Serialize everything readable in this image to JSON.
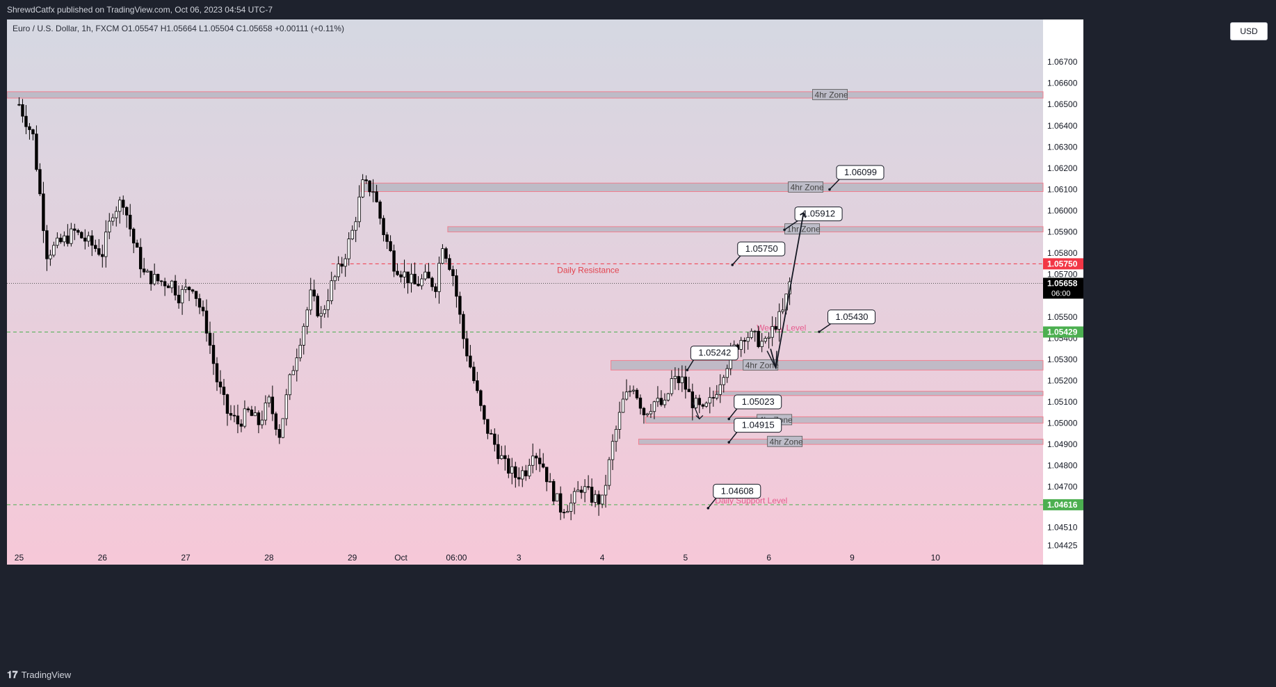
{
  "header": {
    "publisher_line": "ShrewdCatfx published on TradingView.com, Oct 06, 2023 04:54 UTC-7"
  },
  "footer": {
    "brand": "TradingView"
  },
  "currency": "USD",
  "colors": {
    "bg_top": "#d5d8e2",
    "bg_bottom": "#f6c8d8",
    "zone_fill": "#b8b6c2",
    "zone_border": "#f07f8f",
    "resistance": "#f23645",
    "support": "#4caf50",
    "candle": "#000000"
  },
  "chart_data": {
    "type": "candlestick",
    "symbol_line": "Euro / U.S. Dollar, 1h, FXCM  O1.05547  H1.05664  L1.05504  C1.05658  +0.00111 (+0.11%)",
    "ylim": [
      1.0438,
      1.069
    ],
    "y_ticks": [
      "1.06700",
      "1.06600",
      "1.06500",
      "1.06400",
      "1.06300",
      "1.06200",
      "1.06100",
      "1.06000",
      "1.05900",
      "1.05800",
      "1.05700",
      "1.05600",
      "1.05500",
      "1.05400",
      "1.05300",
      "1.05200",
      "1.05100",
      "1.05000",
      "1.04900",
      "1.04800",
      "1.04700",
      "1.04616",
      "1.04510",
      "1.04425"
    ],
    "x_ticks": [
      {
        "label": "25",
        "x": 0
      },
      {
        "label": "26",
        "x": 24
      },
      {
        "label": "27",
        "x": 48
      },
      {
        "label": "28",
        "x": 72
      },
      {
        "label": "29",
        "x": 96
      },
      {
        "label": "Oct",
        "x": 110
      },
      {
        "label": "06:00",
        "x": 126
      },
      {
        "label": "3",
        "x": 144
      },
      {
        "label": "4",
        "x": 168
      },
      {
        "label": "5",
        "x": 192
      },
      {
        "label": "6",
        "x": 216
      },
      {
        "label": "9",
        "x": 240
      },
      {
        "label": "10",
        "x": 264
      }
    ],
    "x_range": [
      -3.5,
      295
    ],
    "price_path": [
      [
        0,
        1.065
      ],
      [
        4,
        1.0635
      ],
      [
        8,
        1.058
      ],
      [
        12,
        1.0585
      ],
      [
        16,
        1.059
      ],
      [
        20,
        1.0585
      ],
      [
        24,
        1.058
      ],
      [
        27,
        1.06
      ],
      [
        30,
        1.0605
      ],
      [
        33,
        1.0585
      ],
      [
        36,
        1.057
      ],
      [
        40,
        1.0567
      ],
      [
        44,
        1.0566
      ],
      [
        46,
        1.056
      ],
      [
        50,
        1.0565
      ],
      [
        54,
        1.0545
      ],
      [
        57,
        1.052
      ],
      [
        60,
        1.0505
      ],
      [
        63,
        1.05
      ],
      [
        66,
        1.0505
      ],
      [
        69,
        1.05
      ],
      [
        72,
        1.051
      ],
      [
        75,
        1.0495
      ],
      [
        78,
        1.052
      ],
      [
        81,
        1.054
      ],
      [
        84,
        1.056
      ],
      [
        87,
        1.055
      ],
      [
        90,
        1.0565
      ],
      [
        93,
        1.0575
      ],
      [
        96,
        1.059
      ],
      [
        99,
        1.0612
      ],
      [
        102,
        1.061
      ],
      [
        105,
        1.059
      ],
      [
        108,
        1.0575
      ],
      [
        111,
        1.057
      ],
      [
        114,
        1.0565
      ],
      [
        117,
        1.0568
      ],
      [
        120,
        1.0565
      ],
      [
        122,
        1.0585
      ],
      [
        125,
        1.057
      ],
      [
        128,
        1.054
      ],
      [
        131,
        1.052
      ],
      [
        134,
        1.05
      ],
      [
        137,
        1.049
      ],
      [
        140,
        1.048
      ],
      [
        143,
        1.0475
      ],
      [
        146,
        1.0478
      ],
      [
        148,
        1.0488
      ],
      [
        151,
        1.048
      ],
      [
        153,
        1.047
      ],
      [
        156,
        1.046
      ],
      [
        159,
        1.0462
      ],
      [
        162,
        1.047
      ],
      [
        165,
        1.0465
      ],
      [
        168,
        1.0463
      ],
      [
        171,
        1.049
      ],
      [
        174,
        1.051
      ],
      [
        177,
        1.0518
      ],
      [
        180,
        1.0505
      ],
      [
        183,
        1.051
      ],
      [
        186,
        1.0508
      ],
      [
        188,
        1.052
      ],
      [
        191,
        1.052
      ],
      [
        194,
        1.051
      ],
      [
        197,
        1.0505
      ],
      [
        200,
        1.0512
      ],
      [
        203,
        1.0525
      ],
      [
        206,
        1.0535
      ],
      [
        209,
        1.0542
      ],
      [
        212,
        1.054
      ],
      [
        215,
        1.0537
      ],
      [
        218,
        1.0547
      ],
      [
        220,
        1.0552
      ],
      [
        222,
        1.0566
      ]
    ],
    "horizontal_lines": [
      {
        "name": "daily-resistance",
        "price": 1.0575,
        "style": "dashed",
        "color": "#f23645",
        "x_from": 90,
        "label": "Daily Resistance",
        "axis_label": "1.05750"
      },
      {
        "name": "current-price",
        "price": 1.05658,
        "style": "dotted",
        "color": "#555555",
        "x_from": -3.5,
        "axis_label": "1.05658",
        "axis_sub": "06:00"
      },
      {
        "name": "weekly-level",
        "price": 1.05429,
        "style": "dashed",
        "color": "#4caf50",
        "x_from": -3.5,
        "label": "Weekly Level",
        "axis_label": "1.05429"
      },
      {
        "name": "daily-support",
        "price": 1.04616,
        "style": "dashed",
        "color": "#4caf50",
        "x_from": -3.5,
        "label": "Daily Support Level",
        "axis_label": "1.04616"
      }
    ],
    "zones": [
      {
        "name": "zone-top",
        "label": "4hr Zone",
        "from_x": -3.5,
        "price_high": 1.0656,
        "price_low": 1.0653,
        "label_x": 229
      },
      {
        "name": "zone-1061",
        "label": "4hr Zone",
        "from_x": 98.5,
        "price_high": 1.0613,
        "price_low": 1.0609,
        "label_x": 222
      },
      {
        "name": "zone-1059",
        "label": "1hr Zone",
        "from_x": 123.5,
        "price_high": 1.05925,
        "price_low": 1.059,
        "label_x": 221
      },
      {
        "name": "zone-1053",
        "label": "4hr Zone",
        "from_x": 170.5,
        "price_high": 1.05295,
        "price_low": 1.0525,
        "label_x": 209
      },
      {
        "name": "zone-1051",
        "label": "",
        "from_x": 200.5,
        "price_high": 1.0515,
        "price_low": 1.0513,
        "label_x": 0
      },
      {
        "name": "zone-1050",
        "label": "4hr Zone",
        "from_x": 180.5,
        "price_high": 1.0503,
        "price_low": 1.05,
        "label_x": 213
      },
      {
        "name": "zone-1049",
        "label": "4hr Zone",
        "from_x": 178.5,
        "price_high": 1.04925,
        "price_low": 1.049,
        "label_x": 216
      }
    ],
    "callouts": [
      {
        "name": "callout-106099",
        "text": "1.06099",
        "anchor_x": 233.5,
        "anchor_price": 1.061,
        "box_x": 235.5,
        "box_price": 1.0618
      },
      {
        "name": "callout-105912",
        "text": "1.05912",
        "anchor_x": 220.5,
        "anchor_price": 1.0591,
        "box_x": 223.5,
        "box_price": 1.05985
      },
      {
        "name": "callout-105750",
        "text": "1.05750",
        "anchor_x": 205.5,
        "anchor_price": 1.05745,
        "box_x": 207,
        "box_price": 1.0582
      },
      {
        "name": "callout-105430",
        "text": "1.05430",
        "anchor_x": 230.5,
        "anchor_price": 1.0543,
        "box_x": 233,
        "box_price": 1.055
      },
      {
        "name": "callout-105242",
        "text": "1.05242",
        "anchor_x": 192.5,
        "anchor_price": 1.0525,
        "box_x": 193.5,
        "box_price": 1.0533
      },
      {
        "name": "callout-105023",
        "text": "1.05023",
        "anchor_x": 204.5,
        "anchor_price": 1.0502,
        "box_x": 206,
        "box_price": 1.051
      },
      {
        "name": "callout-104915",
        "text": "1.04915",
        "anchor_x": 204.5,
        "anchor_price": 1.0491,
        "box_x": 206,
        "box_price": 1.0499
      },
      {
        "name": "callout-104608",
        "text": "1.04608",
        "anchor_x": 198.5,
        "anchor_price": 1.046,
        "box_x": 200,
        "box_price": 1.0468
      }
    ],
    "arrow_path": [
      [
        216.5,
        1.0535
      ],
      [
        218,
        1.0526
      ],
      [
        226,
        1.0599
      ]
    ],
    "small_arrows": [
      {
        "from": [
          194,
          1.051
        ],
        "to": [
          196,
          1.0502
        ]
      }
    ]
  }
}
